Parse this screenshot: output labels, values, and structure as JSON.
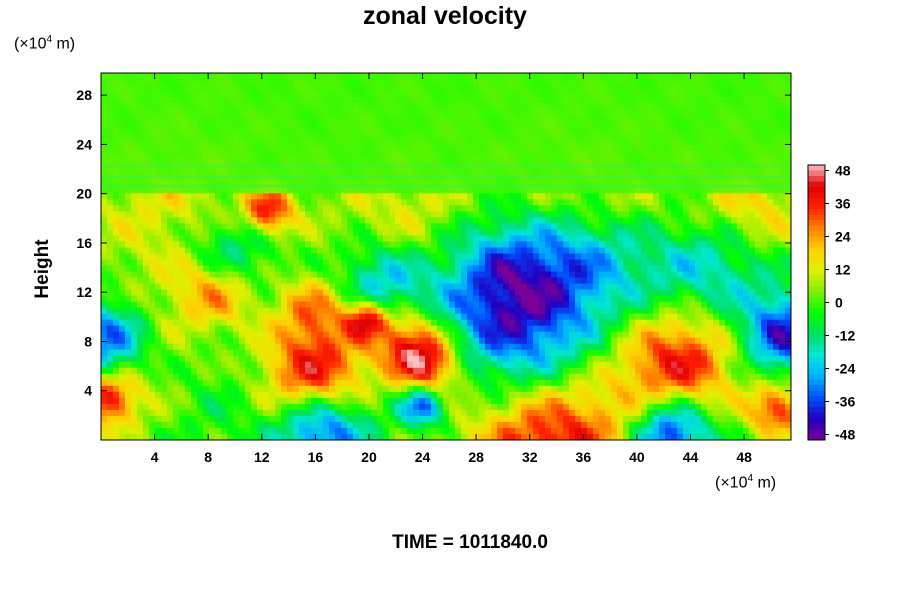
{
  "chart_data": {
    "type": "heatmap",
    "title": "zonal velocity",
    "ylabel": "Height",
    "xlabel": "",
    "x_unit": {
      "prefix": "(×10",
      "exp": "4",
      "suffix": " m)"
    },
    "y_unit": {
      "prefix": "(×10",
      "exp": "4",
      "suffix": " m)"
    },
    "x_ticks": [
      4,
      8,
      12,
      16,
      20,
      24,
      28,
      32,
      36,
      40,
      44,
      48
    ],
    "y_ticks": [
      4,
      8,
      12,
      16,
      20,
      24,
      28
    ],
    "xlim": [
      0,
      51.5
    ],
    "ylim": [
      0,
      29.8
    ],
    "colorbar": {
      "range": [
        -50,
        50
      ],
      "ticks": [
        48,
        36,
        24,
        12,
        0,
        -12,
        -24,
        -36,
        -48
      ],
      "colors": [
        "#7a0099",
        "#2000c0",
        "#0050ff",
        "#00b0ff",
        "#00e8d0",
        "#00e060",
        "#00ff00",
        "#80f000",
        "#e0f000",
        "#ffd000",
        "#ff8000",
        "#ff2000",
        "#e00000",
        "#ffc0c0"
      ]
    },
    "field": {
      "background": 0,
      "blobs": [
        {
          "x": 16,
          "y": 4.8,
          "r": 2.8,
          "value": 48
        },
        {
          "x": 24.5,
          "y": 6,
          "r": 1.8,
          "value": 40
        },
        {
          "x": 22.8,
          "y": 8.2,
          "r": 1.8,
          "value": 32
        },
        {
          "x": 19.8,
          "y": 9.8,
          "r": 1.1,
          "value": 40
        },
        {
          "x": 33.5,
          "y": 0.6,
          "r": 4.5,
          "value": 48
        },
        {
          "x": 43,
          "y": 6.3,
          "r": 3.2,
          "value": 40
        },
        {
          "x": 16.5,
          "y": 1.3,
          "r": 2.5,
          "value": -48
        },
        {
          "x": 24,
          "y": 2.8,
          "r": 1.2,
          "value": -40
        },
        {
          "x": 32,
          "y": 7.5,
          "r": 4.5,
          "value": -40
        },
        {
          "x": 42.5,
          "y": 0.6,
          "r": 2.2,
          "value": -48
        },
        {
          "x": 0.3,
          "y": 8,
          "r": 2.3,
          "value": -40
        },
        {
          "x": 51,
          "y": 8.5,
          "r": 2.4,
          "value": -40
        },
        {
          "x": 0.5,
          "y": 3.3,
          "r": 1.5,
          "value": 36
        },
        {
          "x": 50.5,
          "y": 2.5,
          "r": 1.5,
          "value": 36
        },
        {
          "x": 12.5,
          "y": 18.5,
          "r": 1.3,
          "value": 36
        },
        {
          "x": 8.5,
          "y": 12.2,
          "r": 2.2,
          "value": 28
        },
        {
          "x": 16,
          "y": 10.5,
          "r": 2,
          "value": 24
        },
        {
          "x": 30,
          "y": 13.8,
          "r": 3.5,
          "value": -32
        },
        {
          "x": 36,
          "y": 15,
          "r": 3,
          "value": -24
        },
        {
          "x": 21,
          "y": 12.8,
          "r": 2.5,
          "value": -28
        },
        {
          "x": 9.5,
          "y": 15,
          "r": 2.5,
          "value": -28
        },
        {
          "x": 42,
          "y": 13.5,
          "r": 3.5,
          "value": -14
        },
        {
          "x": 46.5,
          "y": 14.5,
          "r": 3,
          "value": -18
        },
        {
          "x": 23,
          "y": 17.5,
          "r": 4,
          "value": 14
        },
        {
          "x": 36,
          "y": 18.5,
          "r": 5,
          "value": 14
        },
        {
          "x": 6,
          "y": 18.5,
          "r": 5,
          "value": 14
        },
        {
          "x": 48.5,
          "y": 18.5,
          "r": 3,
          "value": 20
        },
        {
          "x": 3,
          "y": 5.5,
          "r": 3.5,
          "value": 12
        },
        {
          "x": 8,
          "y": 4,
          "r": 3.5,
          "value": -8
        }
      ]
    }
  },
  "footer": {
    "time_label": "TIME = 1011840.0"
  }
}
